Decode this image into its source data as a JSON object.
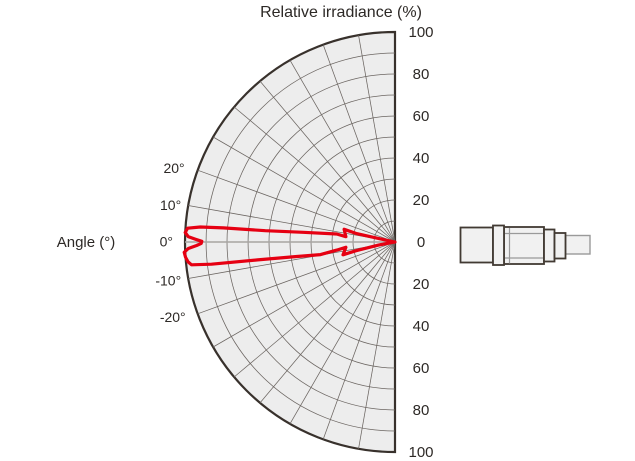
{
  "chart_data": {
    "type": "polar_line",
    "title": "Relative irradiance (%)",
    "angle_label": "Angle (°)",
    "orientation": "left-half-circle, origin at middle right, radius = relative irradiance %",
    "angle_tick_values": [
      20,
      10,
      0,
      -10,
      -20
    ],
    "angle_tick_labels": [
      "20°",
      "10°",
      "0°",
      "-10°",
      "-20°"
    ],
    "radial_tick_labels": [
      "100",
      "80",
      "60",
      "40",
      "20",
      "0",
      "20",
      "40",
      "60",
      "80",
      "100"
    ],
    "radial_range": [
      0,
      100
    ],
    "grid": {
      "ring_step_pct": 10,
      "angle_step_deg": 10,
      "shown": true
    },
    "series": [
      {
        "name": "relative-irradiance-beam-pattern",
        "color": "#e60012",
        "points_deg_pct": [
          [
            9,
            1
          ],
          [
            12.5,
            19
          ],
          [
            14,
            25
          ],
          [
            6.2,
            23.5
          ],
          [
            7.8,
            28
          ],
          [
            6.0,
            44
          ],
          [
            5.0,
            62
          ],
          [
            4.7,
            82
          ],
          [
            4.4,
            93
          ],
          [
            3.8,
            99
          ],
          [
            2.6,
            100
          ],
          [
            1.5,
            98.5
          ],
          [
            0.8,
            95
          ],
          [
            0.2,
            92
          ],
          [
            -0.4,
            92.3
          ],
          [
            -1.0,
            94.5
          ],
          [
            -1.8,
            98.5
          ],
          [
            -2.8,
            100.5
          ],
          [
            -4.2,
            100
          ],
          [
            -5.5,
            99
          ],
          [
            -6.4,
            97.5
          ],
          [
            -6.9,
            88
          ],
          [
            -7.4,
            66
          ],
          [
            -8.3,
            48
          ],
          [
            -9.6,
            36
          ],
          [
            -7.9,
            28
          ],
          [
            -6.2,
            23.5
          ],
          [
            -13.8,
            25.5
          ],
          [
            -12.6,
            19
          ],
          [
            -10.5,
            8
          ],
          [
            -9,
            1
          ]
        ]
      }
    ],
    "annotations": {
      "device_icon": "emitter-module-side-view-with-cable"
    }
  },
  "colors": {
    "plot_fill": "#ededed",
    "grid_line": "#6b6561",
    "outer_boundary": "#38312c",
    "zero_axis": "#a8a5a2",
    "curve": "#e60012",
    "text": "#2d2926",
    "device_outline": "#423a33",
    "device_fill": "#f1f1f1",
    "device_detail": "#9a9a9a"
  }
}
